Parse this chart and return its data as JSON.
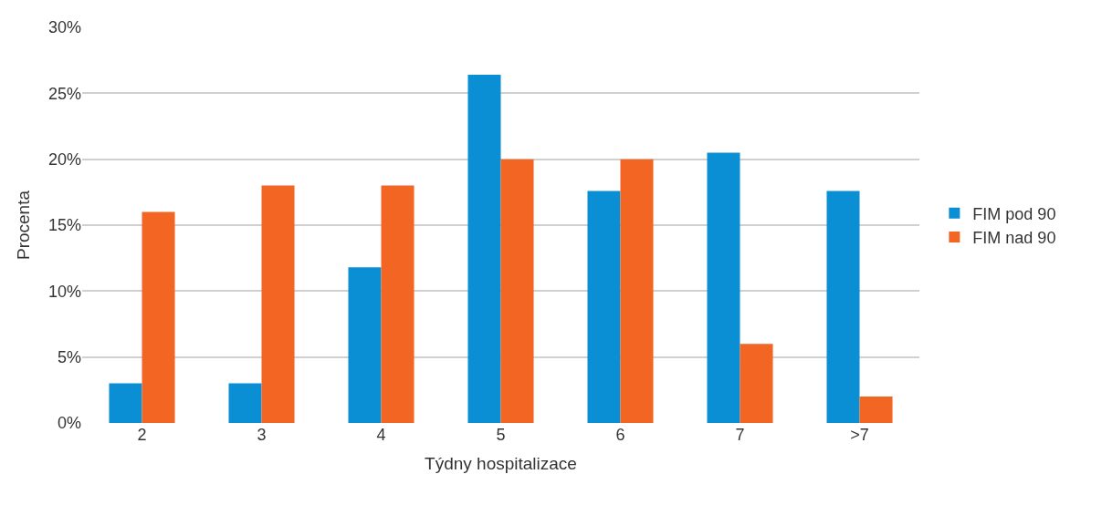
{
  "chart_data": {
    "type": "bar",
    "xlabel": "Týdny hospitalizace",
    "ylabel": "Procenta",
    "categories": [
      "2",
      "3",
      "4",
      "5",
      "6",
      "7",
      ">7"
    ],
    "series": [
      {
        "name": "FIM pod 90",
        "color": "#0b8fd4",
        "values": [
          3,
          3,
          11.8,
          26.4,
          17.6,
          20.5,
          17.6
        ]
      },
      {
        "name": "FIM nad 90",
        "color": "#f26522",
        "values": [
          16,
          18,
          18,
          20,
          20,
          6,
          2
        ]
      }
    ],
    "ylim": [
      0,
      30
    ],
    "yticks": [
      {
        "value": 0,
        "label": "0%"
      },
      {
        "value": 5,
        "label": "5%"
      },
      {
        "value": 10,
        "label": "10%"
      },
      {
        "value": 15,
        "label": "15%"
      },
      {
        "value": 20,
        "label": "20%"
      },
      {
        "value": 25,
        "label": "25%"
      },
      {
        "value": 30,
        "label": "30%"
      }
    ],
    "grid": "y",
    "legend": "right"
  }
}
